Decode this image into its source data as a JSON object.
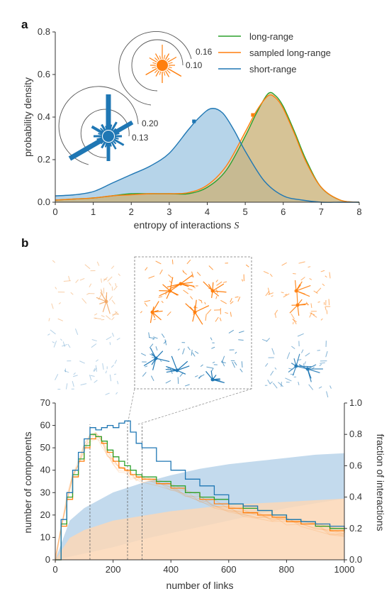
{
  "panel_a": {
    "label": "a",
    "xlabel": "entropy of interactions",
    "xlabel_symbol": "S",
    "ylabel": "probability density",
    "xticks": [
      "0",
      "1",
      "2",
      "3",
      "4",
      "5",
      "6",
      "7",
      "8"
    ],
    "yticks": [
      "0.0",
      "0.2",
      "0.4",
      "0.6",
      "0.8"
    ],
    "legend": [
      "long-range",
      "sampled long-range",
      "short-range"
    ],
    "inset_orange_rings": [
      "0.16",
      "0.10"
    ],
    "inset_blue_rings": [
      "0.20",
      "0.13"
    ]
  },
  "panel_b": {
    "label": "b",
    "xlabel": "number of links",
    "ylabel_left": "number of components",
    "ylabel_right": "fraction of interactions",
    "xticks": [
      "0",
      "200",
      "400",
      "600",
      "800",
      "1000"
    ],
    "yticks_left": [
      "0",
      "10",
      "20",
      "30",
      "40",
      "50",
      "60",
      "70"
    ],
    "yticks_right": [
      "0.0",
      "0.2",
      "0.4",
      "0.6",
      "0.8",
      "1.0"
    ]
  },
  "colors": {
    "long_range": "#2ca02c",
    "sampled_long_range": "#ff7f0e",
    "short_range": "#1f77b4",
    "blue_fill": "#9ec5e2",
    "orange_fill": "#f9c79a",
    "olive_fill": "#b7ab6e"
  },
  "chart_data": [
    {
      "type": "area",
      "xlim": [
        0,
        8
      ],
      "ylim": [
        0,
        0.8
      ],
      "series": [
        {
          "name": "long-range",
          "x": [
            0,
            0.5,
            1,
            1.5,
            2,
            2.5,
            3,
            3.5,
            4,
            4.5,
            5,
            5.3,
            5.6,
            5.8,
            6,
            6.3,
            6.6,
            7,
            7.5,
            8
          ],
          "y": [
            0.01,
            0.015,
            0.02,
            0.03,
            0.04,
            0.04,
            0.04,
            0.04,
            0.07,
            0.15,
            0.31,
            0.42,
            0.51,
            0.5,
            0.45,
            0.33,
            0.2,
            0.07,
            0.01,
            0.0
          ]
        },
        {
          "name": "sampled long-range",
          "x": [
            0,
            0.5,
            1,
            1.5,
            2,
            2.5,
            3,
            3.5,
            4,
            4.5,
            5,
            5.3,
            5.6,
            5.8,
            6,
            6.3,
            6.6,
            7,
            7.5,
            8
          ],
          "y": [
            0.01,
            0.015,
            0.02,
            0.03,
            0.035,
            0.04,
            0.04,
            0.045,
            0.08,
            0.17,
            0.33,
            0.43,
            0.5,
            0.49,
            0.44,
            0.32,
            0.19,
            0.07,
            0.01,
            0.0
          ]
        },
        {
          "name": "short-range",
          "x": [
            0,
            0.5,
            1,
            1.5,
            2,
            2.5,
            3,
            3.5,
            3.8,
            4.1,
            4.4,
            4.7,
            5,
            5.5,
            6,
            6.5,
            7,
            7.5,
            8
          ],
          "y": [
            0.03,
            0.035,
            0.05,
            0.09,
            0.13,
            0.17,
            0.23,
            0.34,
            0.4,
            0.44,
            0.42,
            0.34,
            0.24,
            0.1,
            0.03,
            0.01,
            0.0,
            0.0,
            0.0
          ]
        }
      ],
      "markers": [
        {
          "series": "short-range",
          "x": 3.65,
          "y": 0.38
        },
        {
          "series": "sampled long-range",
          "x": 5.2,
          "y": 0.41
        }
      ]
    },
    {
      "type": "line",
      "xlim": [
        0,
        1000
      ],
      "ylim": [
        0,
        70
      ],
      "ylim_right": [
        0,
        1.0
      ],
      "series": [
        {
          "name": "short-range",
          "x": [
            0,
            20,
            40,
            60,
            80,
            100,
            120,
            140,
            160,
            180,
            200,
            220,
            240,
            260,
            280,
            300,
            350,
            400,
            450,
            500,
            550,
            600,
            650,
            700,
            750,
            800,
            850,
            900,
            950,
            1000
          ],
          "y": [
            0,
            18,
            30,
            40,
            48,
            54,
            59,
            58,
            59,
            60,
            59,
            61,
            62,
            57,
            52,
            50,
            44,
            40,
            36,
            33,
            29,
            25,
            24,
            22,
            20,
            18,
            17,
            16,
            15,
            14
          ]
        },
        {
          "name": "long-range",
          "x": [
            0,
            20,
            40,
            60,
            80,
            100,
            120,
            140,
            160,
            180,
            200,
            220,
            240,
            260,
            280,
            300,
            350,
            400,
            450,
            500,
            550,
            600,
            650,
            700,
            750,
            800,
            850,
            900,
            950,
            1000
          ],
          "y": [
            0,
            16,
            28,
            38,
            45,
            51,
            56,
            55,
            53,
            49,
            46,
            44,
            42,
            40,
            38,
            37,
            35,
            33,
            30,
            28,
            27,
            25,
            23,
            22,
            20,
            18,
            17,
            15,
            14,
            13
          ]
        },
        {
          "name": "sampled long-range",
          "x": [
            0,
            20,
            40,
            60,
            80,
            100,
            120,
            140,
            160,
            180,
            200,
            220,
            240,
            260,
            280,
            300,
            350,
            400,
            450,
            500,
            550,
            600,
            650,
            700,
            750,
            800,
            850,
            900,
            950,
            1000
          ],
          "y": [
            0,
            15,
            27,
            37,
            44,
            50,
            54,
            55,
            52,
            48,
            44,
            41,
            40,
            38,
            37,
            36,
            34,
            32,
            30,
            27,
            25,
            23,
            21,
            20,
            19,
            17,
            16,
            15,
            13,
            12
          ]
        }
      ],
      "bands_right_axis": [
        {
          "name": "short-range fraction",
          "x": [
            0,
            50,
            100,
            200,
            300,
            400,
            500,
            600,
            700,
            800,
            900,
            1000
          ],
          "low": [
            0,
            0.02,
            0.04,
            0.08,
            0.13,
            0.17,
            0.21,
            0.25,
            0.29,
            0.33,
            0.36,
            0.39
          ],
          "high": [
            0,
            0.25,
            0.33,
            0.43,
            0.49,
            0.54,
            0.58,
            0.61,
            0.63,
            0.65,
            0.67,
            0.68
          ]
        },
        {
          "name": "long-range fraction",
          "x": [
            0,
            50,
            100,
            200,
            300,
            400,
            500,
            600,
            700,
            800,
            900,
            1000
          ],
          "low": [
            0,
            0,
            0,
            0,
            0,
            0,
            0,
            0,
            0,
            0,
            0,
            0
          ],
          "high": [
            0,
            0.14,
            0.19,
            0.25,
            0.28,
            0.31,
            0.33,
            0.35,
            0.36,
            0.37,
            0.38,
            0.39
          ]
        }
      ],
      "vertical_markers": [
        120,
        250,
        300
      ]
    }
  ]
}
